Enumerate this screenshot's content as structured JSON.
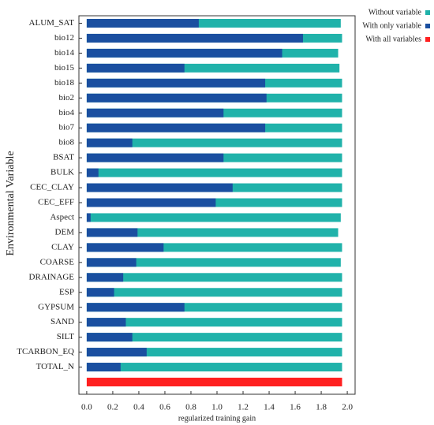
{
  "chart_data": {
    "type": "bar",
    "orientation": "horizontal",
    "overlay": true,
    "y_label": "Environmental Variable",
    "x_label": "regularized training gain",
    "categories": [
      "ALUM_SAT",
      "bio12",
      "bio14",
      "bio15",
      "bio18",
      "bio2",
      "bio4",
      "bio7",
      "bio8",
      "BSAT",
      "BULK",
      "CEC_CLAY",
      "CEC_EFF",
      "Aspect",
      "DEM",
      "CLAY",
      "COARSE",
      "DRAINAGE",
      "ESP",
      "GYPSUM",
      "SAND",
      "SILT",
      "TCARBON_EQ",
      "TOTAL_N",
      null
    ],
    "series": [
      {
        "name": "Without variable",
        "color": "#20b2aa",
        "values": [
          1.95,
          1.96,
          1.93,
          1.94,
          1.96,
          1.96,
          1.96,
          1.96,
          1.96,
          1.96,
          1.96,
          1.96,
          1.96,
          1.95,
          1.93,
          1.96,
          1.95,
          1.96,
          1.96,
          1.96,
          1.96,
          1.96,
          1.96,
          1.96,
          null
        ]
      },
      {
        "name": "With only variable",
        "color": "#1a4fa0",
        "values": [
          0.86,
          1.66,
          1.5,
          0.75,
          1.37,
          1.38,
          1.05,
          1.37,
          0.35,
          1.05,
          0.09,
          1.12,
          0.99,
          0.03,
          0.39,
          0.59,
          0.38,
          0.28,
          0.21,
          0.75,
          0.3,
          0.35,
          0.46,
          0.26,
          null
        ]
      },
      {
        "name": "With all variables",
        "color": "#ff2020",
        "values": [
          null,
          null,
          null,
          null,
          null,
          null,
          null,
          null,
          null,
          null,
          null,
          null,
          null,
          null,
          null,
          null,
          null,
          null,
          null,
          null,
          null,
          null,
          null,
          null,
          1.96
        ]
      }
    ],
    "xlim": [
      -0.06,
      2.06
    ],
    "xticks": [
      {
        "value": 0,
        "label": "0.0"
      },
      0.2,
      0.4,
      0.6,
      0.8,
      {
        "value": 1,
        "label": "1.0"
      },
      1.2,
      1.4,
      1.6,
      1.8,
      {
        "value": 2,
        "label": "2.0"
      }
    ],
    "legend": "right"
  }
}
